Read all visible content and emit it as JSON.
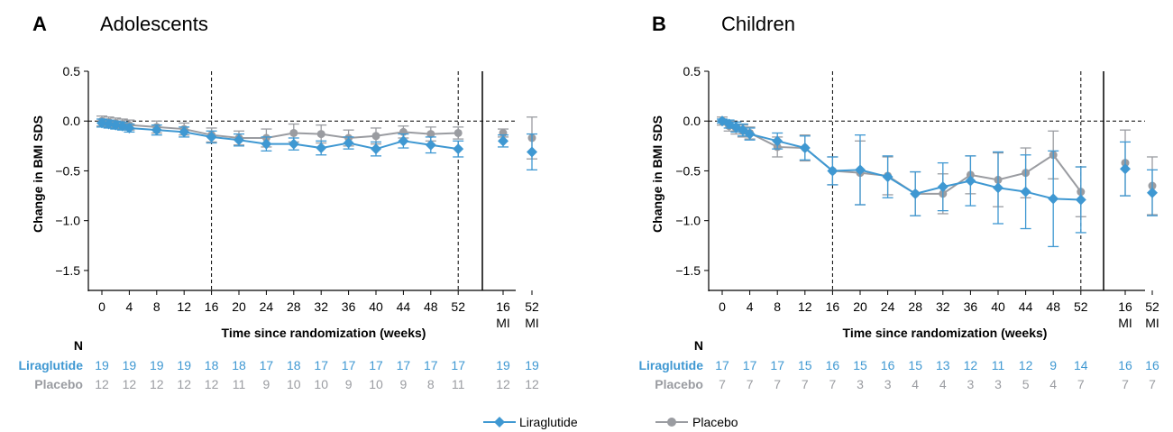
{
  "colors": {
    "liraglutide": "#3f98d2",
    "placebo": "#9a9ca1",
    "axis": "#000000"
  },
  "legend": {
    "liraglutide": "Liraglutide",
    "placebo": "Placebo"
  },
  "chart_data": [
    {
      "type": "line",
      "panel_letter": "A",
      "title": "Adolescents",
      "ylabel": "Change in BMI SDS",
      "xlabel": "Time since randomization (weeks)",
      "ylim": [
        -1.7,
        0.5
      ],
      "yticks": [
        0.5,
        0.0,
        -0.5,
        -1.0,
        -1.5
      ],
      "ytick_labels": [
        "0.5",
        "0.0",
        "−0.5",
        "−1.0",
        "−1.5"
      ],
      "x": [
        0,
        1,
        2,
        3,
        4,
        8,
        12,
        16,
        20,
        24,
        28,
        32,
        36,
        40,
        44,
        48,
        52
      ],
      "xtick_labels": [
        "0",
        "4",
        "8",
        "12",
        "16",
        "20",
        "24",
        "28",
        "32",
        "36",
        "40",
        "44",
        "48",
        "52"
      ],
      "mi_ticks": [
        [
          "16",
          "MI"
        ],
        [
          "52",
          "MI"
        ]
      ],
      "series": [
        {
          "name": "Liraglutide",
          "values": [
            -0.02,
            -0.03,
            -0.04,
            -0.05,
            -0.07,
            -0.09,
            -0.11,
            -0.16,
            -0.19,
            -0.23,
            -0.23,
            -0.27,
            -0.22,
            -0.28,
            -0.2,
            -0.24,
            -0.28
          ],
          "err": [
            0.04,
            0.04,
            0.04,
            0.04,
            0.04,
            0.05,
            0.05,
            0.06,
            0.06,
            0.07,
            0.06,
            0.07,
            0.06,
            0.07,
            0.07,
            0.08,
            0.08
          ],
          "mi": [
            -0.2,
            -0.31
          ],
          "mi_err": [
            0.06,
            0.18
          ]
        },
        {
          "name": "Placebo",
          "values": [
            0.0,
            -0.01,
            -0.02,
            -0.03,
            -0.04,
            -0.06,
            -0.08,
            -0.14,
            -0.17,
            -0.17,
            -0.12,
            -0.13,
            -0.17,
            -0.15,
            -0.11,
            -0.13,
            -0.12
          ],
          "err": [
            0.05,
            0.05,
            0.05,
            0.05,
            0.05,
            0.06,
            0.06,
            0.07,
            0.07,
            0.09,
            0.09,
            0.09,
            0.08,
            0.08,
            0.06,
            0.07,
            0.06
          ],
          "mi": [
            -0.12,
            -0.17
          ],
          "mi_err": [
            0.04,
            0.21
          ]
        }
      ],
      "n_header": "N",
      "n_rows": [
        {
          "label": "Liraglutide",
          "values": [
            "19",
            "19",
            "19",
            "19",
            "18",
            "18",
            "17",
            "18",
            "17",
            "17",
            "17",
            "17",
            "17",
            "17",
            "19",
            "19"
          ]
        },
        {
          "label": "Placebo",
          "values": [
            "12",
            "12",
            "12",
            "12",
            "12",
            "11",
            "9",
            "10",
            "10",
            "9",
            "10",
            "9",
            "8",
            "11",
            "12",
            "12"
          ]
        }
      ]
    },
    {
      "type": "line",
      "panel_letter": "B",
      "title": "Children",
      "ylabel": "Change in BMI SDS",
      "xlabel": "Time since randomization (weeks)",
      "ylim": [
        -1.7,
        0.5
      ],
      "yticks": [
        0.5,
        0.0,
        -0.5,
        -1.0,
        -1.5
      ],
      "ytick_labels": [
        "0.5",
        "0.0",
        "−0.5",
        "−1.0",
        "−1.5"
      ],
      "x": [
        0,
        1,
        2,
        3,
        4,
        8,
        12,
        16,
        20,
        24,
        28,
        32,
        36,
        40,
        44,
        48,
        52
      ],
      "xtick_labels": [
        "0",
        "4",
        "8",
        "12",
        "16",
        "20",
        "24",
        "28",
        "32",
        "36",
        "40",
        "44",
        "48",
        "52"
      ],
      "mi_ticks": [
        [
          "16",
          "MI"
        ],
        [
          "52",
          "MI"
        ]
      ],
      "series": [
        {
          "name": "Liraglutide",
          "values": [
            0.0,
            -0.03,
            -0.06,
            -0.09,
            -0.13,
            -0.2,
            -0.27,
            -0.5,
            -0.49,
            -0.56,
            -0.73,
            -0.66,
            -0.6,
            -0.67,
            -0.71,
            -0.78,
            -0.79
          ],
          "err": [
            0.02,
            0.04,
            0.05,
            0.06,
            0.06,
            0.08,
            0.12,
            0.14,
            0.35,
            0.21,
            0.22,
            0.24,
            0.25,
            0.36,
            0.37,
            0.48,
            0.33
          ],
          "mi": [
            -0.48,
            -0.72
          ],
          "mi_err": [
            0.27,
            0.23
          ]
        },
        {
          "name": "Placebo",
          "values": [
            0.0,
            -0.05,
            -0.07,
            -0.1,
            -0.12,
            -0.26,
            -0.27,
            -0.5,
            -0.52,
            -0.55,
            -0.73,
            -0.73,
            -0.54,
            -0.59,
            -0.52,
            -0.34,
            -0.71
          ],
          "err": [
            0.04,
            0.05,
            0.06,
            0.06,
            0.06,
            0.1,
            0.13,
            0.14,
            0.32,
            0.19,
            0.22,
            0.2,
            0.19,
            0.27,
            0.25,
            0.24,
            0.25
          ],
          "mi": [
            -0.42,
            -0.65
          ],
          "mi_err": [
            0.33,
            0.29
          ]
        }
      ],
      "n_header": "N",
      "n_rows": [
        {
          "label": "Liraglutide",
          "values": [
            "17",
            "17",
            "17",
            "15",
            "16",
            "15",
            "16",
            "15",
            "13",
            "12",
            "11",
            "12",
            "9",
            "14",
            "16",
            "16"
          ]
        },
        {
          "label": "Placebo",
          "values": [
            "7",
            "7",
            "7",
            "7",
            "7",
            "3",
            "3",
            "4",
            "4",
            "3",
            "3",
            "5",
            "4",
            "7",
            "7",
            "7"
          ]
        }
      ]
    }
  ]
}
